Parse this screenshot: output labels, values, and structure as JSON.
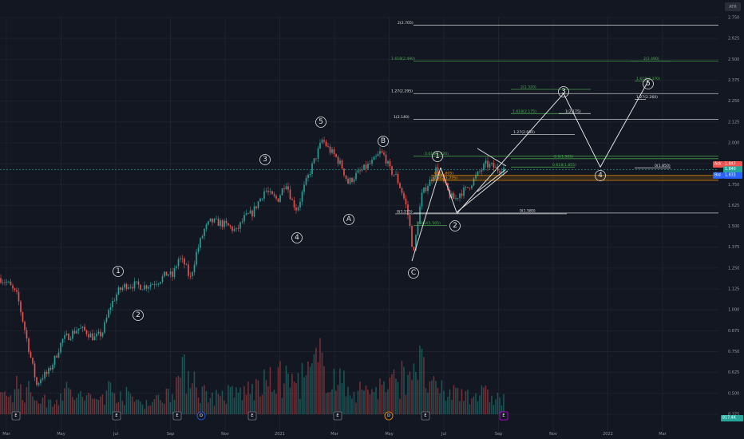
{
  "colors": {
    "background": "#131722",
    "grid": "#1e222d",
    "up": "#26a69a",
    "down": "#ef5350",
    "fib_white": "#e0e0e0",
    "fib_green": "#4caf50",
    "fib_orange": "#ff9800",
    "ask": "#ef5350",
    "bid": "#2962ff",
    "last": "#26a69a"
  },
  "corner_label": "ATR",
  "chart_data": {
    "type": "candlestick",
    "title": "",
    "price_axis": {
      "ticks": [
        "2.750",
        "2.625",
        "2.500",
        "2.375",
        "2.250",
        "2.125",
        "2.000",
        "1.875",
        "1.750",
        "1.625",
        "1.500",
        "1.375",
        "1.250",
        "1.125",
        "1.000",
        "0.875",
        "0.750",
        "0.625",
        "0.500",
        "0.375"
      ],
      "range": [
        0.3,
        2.8
      ]
    },
    "time_axis": {
      "ticks": [
        "Mar",
        "May",
        "Jul",
        "Sep",
        "Nov",
        "2021",
        "Mar",
        "May",
        "Jul",
        "Sep",
        "Nov",
        "2022",
        "Mar"
      ]
    },
    "price_path": [
      [
        0,
        1.19
      ],
      [
        10,
        1.16
      ],
      [
        22,
        1.08
      ],
      [
        32,
        0.86
      ],
      [
        40,
        0.68
      ],
      [
        46,
        0.55
      ],
      [
        52,
        0.6
      ],
      [
        60,
        0.62
      ],
      [
        68,
        0.7
      ],
      [
        78,
        0.82
      ],
      [
        88,
        0.85
      ],
      [
        98,
        0.89
      ],
      [
        108,
        0.87
      ],
      [
        118,
        0.83
      ],
      [
        128,
        0.86
      ],
      [
        138,
        1.02
      ],
      [
        148,
        1.11
      ],
      [
        158,
        1.15
      ],
      [
        168,
        1.15
      ],
      [
        180,
        1.14
      ],
      [
        192,
        1.16
      ],
      [
        200,
        1.18
      ],
      [
        210,
        1.22
      ],
      [
        216,
        1.2
      ],
      [
        224,
        1.31
      ],
      [
        232,
        1.27
      ],
      [
        238,
        1.18
      ],
      [
        246,
        1.34
      ],
      [
        256,
        1.48
      ],
      [
        264,
        1.53
      ],
      [
        276,
        1.52
      ],
      [
        286,
        1.5
      ],
      [
        296,
        1.47
      ],
      [
        306,
        1.55
      ],
      [
        316,
        1.58
      ],
      [
        324,
        1.65
      ],
      [
        332,
        1.72
      ],
      [
        340,
        1.68
      ],
      [
        348,
        1.66
      ],
      [
        358,
        1.77
      ],
      [
        366,
        1.65
      ],
      [
        372,
        1.6
      ],
      [
        380,
        1.72
      ],
      [
        390,
        1.85
      ],
      [
        396,
        1.92
      ],
      [
        404,
        2.02
      ],
      [
        412,
        1.96
      ],
      [
        420,
        1.92
      ],
      [
        428,
        1.86
      ],
      [
        436,
        1.76
      ],
      [
        444,
        1.8
      ],
      [
        452,
        1.83
      ],
      [
        460,
        1.86
      ],
      [
        468,
        1.89
      ],
      [
        476,
        1.94
      ],
      [
        482,
        1.92
      ],
      [
        488,
        1.84
      ],
      [
        496,
        1.8
      ],
      [
        504,
        1.7
      ],
      [
        510,
        1.6
      ],
      [
        514,
        1.48
      ],
      [
        518,
        1.32
      ],
      [
        522,
        1.48
      ],
      [
        528,
        1.68
      ],
      [
        534,
        1.74
      ],
      [
        540,
        1.78
      ],
      [
        546,
        1.84
      ],
      [
        552,
        1.8
      ],
      [
        558,
        1.74
      ],
      [
        564,
        1.68
      ],
      [
        570,
        1.66
      ],
      [
        576,
        1.7
      ],
      [
        584,
        1.72
      ],
      [
        592,
        1.77
      ],
      [
        600,
        1.82
      ],
      [
        608,
        1.87
      ],
      [
        616,
        1.86
      ],
      [
        624,
        1.84
      ],
      [
        630,
        1.85
      ]
    ],
    "volume_profile": [
      [
        0,
        0.25
      ],
      [
        20,
        0.5
      ],
      [
        40,
        0.35
      ],
      [
        60,
        0.2
      ],
      [
        80,
        0.4
      ],
      [
        100,
        0.3
      ],
      [
        120,
        0.25
      ],
      [
        140,
        0.45
      ],
      [
        160,
        0.3
      ],
      [
        180,
        0.2
      ],
      [
        200,
        0.25
      ],
      [
        220,
        0.55
      ],
      [
        240,
        0.8
      ],
      [
        250,
        0.4
      ],
      [
        270,
        0.3
      ],
      [
        290,
        0.35
      ],
      [
        310,
        0.4
      ],
      [
        330,
        0.5
      ],
      [
        350,
        0.6
      ],
      [
        370,
        0.55
      ],
      [
        390,
        0.7
      ],
      [
        400,
        0.9
      ],
      [
        410,
        0.75
      ],
      [
        430,
        0.5
      ],
      [
        450,
        0.4
      ],
      [
        470,
        0.45
      ],
      [
        490,
        0.5
      ],
      [
        510,
        0.7
      ],
      [
        520,
        1.0
      ],
      [
        540,
        0.45
      ],
      [
        560,
        0.35
      ],
      [
        580,
        0.4
      ],
      [
        600,
        0.35
      ],
      [
        620,
        0.3
      ],
      [
        630,
        0.25
      ]
    ],
    "fib_levels": [
      {
        "label": "2(2.705)",
        "value": 2.705,
        "color": "white"
      },
      {
        "label": "1.618(2.490)",
        "value": 2.49,
        "color": "green"
      },
      {
        "label": "2(2.490)",
        "value": 2.49,
        "color": "green"
      },
      {
        "label": "1.618(2.370)",
        "value": 2.37,
        "color": "green"
      },
      {
        "label": "2(2.320)",
        "value": 2.32,
        "color": "green"
      },
      {
        "label": "1.27(2.295)",
        "value": 2.295,
        "color": "white"
      },
      {
        "label": "1.27(2.260)",
        "value": 2.26,
        "color": "white"
      },
      {
        "label": "1.618(2.175)",
        "value": 2.175,
        "color": "green"
      },
      {
        "label": "1(2.175)",
        "value": 2.175,
        "color": "white"
      },
      {
        "label": "1(2.140)",
        "value": 2.14,
        "color": "white"
      },
      {
        "label": "1.27(2.050)",
        "value": 2.05,
        "color": "white"
      },
      {
        "label": "0.618(1.920)",
        "value": 1.92,
        "color": "green"
      },
      {
        "label": "0.5(1.905)",
        "value": 1.905,
        "color": "green"
      },
      {
        "label": "0.618(1.855)",
        "value": 1.855,
        "color": "green"
      },
      {
        "label": "0(1.850)",
        "value": 1.85,
        "color": "white"
      },
      {
        "label": "0.5(1.805)",
        "value": 1.805,
        "color": "orange"
      },
      {
        "label": "0.382(1.775)",
        "value": 1.775,
        "color": "orange"
      },
      {
        "label": "0(1.580)",
        "value": 1.58,
        "color": "white"
      },
      {
        "label": "0(1.575)",
        "value": 1.575,
        "color": "white"
      },
      {
        "label": "0.382(1.505)",
        "value": 1.505,
        "color": "green"
      }
    ],
    "wave_labels": [
      {
        "label": "1"
      },
      {
        "label": "2"
      },
      {
        "label": "3"
      },
      {
        "label": "4"
      },
      {
        "label": "5"
      },
      {
        "label": "A"
      },
      {
        "label": "B"
      },
      {
        "label": "C"
      },
      {
        "label": "1"
      },
      {
        "label": "2"
      },
      {
        "label": "3"
      },
      {
        "label": "4"
      },
      {
        "label": "5"
      }
    ],
    "projection_path": [
      [
        1.575,
        "2"
      ],
      [
        2.295,
        "3"
      ],
      [
        1.855,
        "4"
      ],
      [
        2.37,
        "5"
      ]
    ],
    "earnings_badges": [
      "E",
      "E",
      "E",
      "D",
      "E",
      "E",
      "D",
      "E",
      "E"
    ],
    "price_labels": {
      "ask_label": "Ask",
      "ask_value": "1.847",
      "last_value": "1.840",
      "bid_label": "Bid",
      "bid_value": "1.833",
      "volume_value": "817.4K"
    },
    "grid": true,
    "legend": "none"
  }
}
